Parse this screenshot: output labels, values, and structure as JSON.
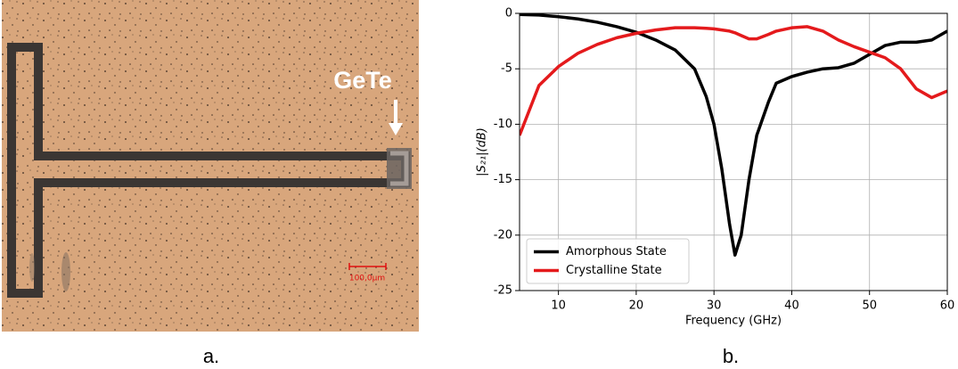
{
  "panel_a": {
    "label": "GeTe",
    "scale_bar": "100,0µm",
    "caption": "a."
  },
  "panel_b_caption": "b.",
  "chart_data": {
    "type": "line",
    "xlabel": "Frequency (GHz)",
    "ylabel": "|S₂₁|(dB)",
    "x": [
      5,
      7.5,
      10,
      12.5,
      15,
      17.5,
      20,
      22.5,
      25,
      27.5,
      29,
      30,
      31,
      32,
      32.7,
      33.5,
      34.5,
      35.5,
      37,
      38,
      40,
      42,
      44,
      46,
      48,
      50,
      52,
      54,
      56,
      58,
      60
    ],
    "series": [
      {
        "name": "Amorphous State",
        "color": "#000000",
        "values": [
          -0.1,
          -0.15,
          -0.3,
          -0.5,
          -0.8,
          -1.2,
          -1.7,
          -2.4,
          -3.3,
          -5.0,
          -7.5,
          -10,
          -14,
          -19,
          -21.8,
          -20,
          -15,
          -11,
          -8,
          -6.3,
          -5.7,
          -5.3,
          -5.0,
          -4.9,
          -4.5,
          -3.7,
          -2.9,
          -2.6,
          -2.6,
          -2.4,
          -1.6
        ]
      },
      {
        "name": "Crystalline State",
        "color": "#e41a1c",
        "values": [
          -11,
          -6.5,
          -4.8,
          -3.6,
          -2.8,
          -2.2,
          -1.8,
          -1.5,
          -1.3,
          -1.3,
          -1.35,
          -1.4,
          -1.5,
          -1.6,
          -1.75,
          -2.0,
          -2.3,
          -2.3,
          -1.9,
          -1.6,
          -1.3,
          -1.2,
          -1.6,
          -2.4,
          -3.0,
          -3.5,
          -4.0,
          -5.0,
          -6.8,
          -7.6,
          -7.0
        ]
      }
    ],
    "xlim": [
      5,
      60
    ],
    "xticks": [
      10,
      20,
      30,
      40,
      50,
      60
    ],
    "ylim": [
      -25,
      0
    ],
    "yticks": [
      -25,
      -20,
      -15,
      -10,
      -5,
      0
    ],
    "grid": true,
    "legend": "lower left"
  }
}
